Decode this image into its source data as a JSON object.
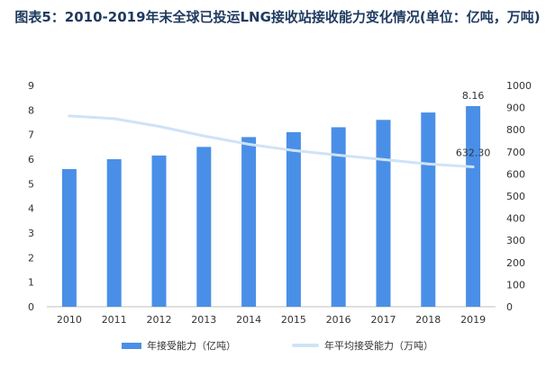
{
  "title": "图表5：2010-2019年末全球已投运LNG接收站接收能力变化情况(单位：亿吨，万吨)",
  "chart_data": {
    "type": "bar",
    "categories": [
      "2010",
      "2011",
      "2012",
      "2013",
      "2014",
      "2015",
      "2016",
      "2017",
      "2018",
      "2019"
    ],
    "series": [
      {
        "name": "年接受能力（亿吨）",
        "type": "bar",
        "axis": "left",
        "color": "#4a8fe7",
        "values": [
          5.6,
          6.0,
          6.15,
          6.5,
          6.9,
          7.1,
          7.3,
          7.6,
          7.9,
          8.16
        ],
        "labeled": {
          "index": 9,
          "label": "8.16"
        }
      },
      {
        "name": "年平均接受能力（万吨）",
        "type": "line",
        "axis": "right",
        "color": "#cfe3f7",
        "values": [
          862,
          850,
          815,
          772,
          734,
          706,
          685,
          665,
          645,
          632.3
        ],
        "labeled": {
          "index": 9,
          "label": "632.30"
        }
      }
    ],
    "y_left": {
      "min": 0,
      "max": 9,
      "ticks": [
        "0",
        "1",
        "2",
        "3",
        "4",
        "5",
        "6",
        "7",
        "8",
        "9"
      ]
    },
    "y_right": {
      "min": 0,
      "max": 1000,
      "ticks": [
        "0",
        "100",
        "200",
        "300",
        "400",
        "500",
        "600",
        "700",
        "800",
        "900",
        "1000"
      ]
    },
    "legend_position": "bottom",
    "grid": false
  }
}
